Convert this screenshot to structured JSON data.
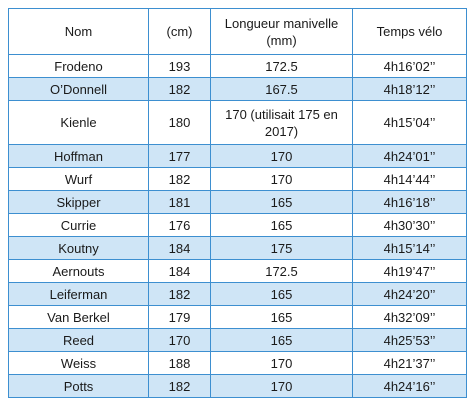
{
  "table": {
    "header": [
      "Nom",
      "(cm)",
      "Longueur manivelle (mm)",
      "Temps vélo"
    ],
    "rows": [
      [
        "Frodeno",
        "193",
        "172.5",
        "4h16’02’’"
      ],
      [
        "O’Donnell",
        "182",
        "167.5",
        "4h18’12’’"
      ],
      [
        "Kienle",
        "180",
        "170 (utilisait 175 en 2017)",
        "4h15’04’’"
      ],
      [
        "Hoffman",
        "177",
        "170",
        "4h24’01’’"
      ],
      [
        "Wurf",
        "182",
        "170",
        "4h14’44’’"
      ],
      [
        "Skipper",
        "181",
        "165",
        "4h16’18’’"
      ],
      [
        "Currie",
        "176",
        "165",
        "4h30’30’’"
      ],
      [
        "Koutny",
        "184",
        "175",
        "4h15’14’’"
      ],
      [
        "Aernouts",
        "184",
        "172.5",
        "4h19’47’’"
      ],
      [
        "Leiferman",
        "182",
        "165",
        "4h24’20’’"
      ],
      [
        "Van Berkel",
        "179",
        "165",
        "4h32’09’’"
      ],
      [
        "Reed",
        "170",
        "165",
        "4h25’53’’"
      ],
      [
        "Weiss",
        "188",
        "170",
        "4h21’37’’"
      ],
      [
        "Potts",
        "182",
        "170",
        "4h24’16’’"
      ]
    ]
  }
}
